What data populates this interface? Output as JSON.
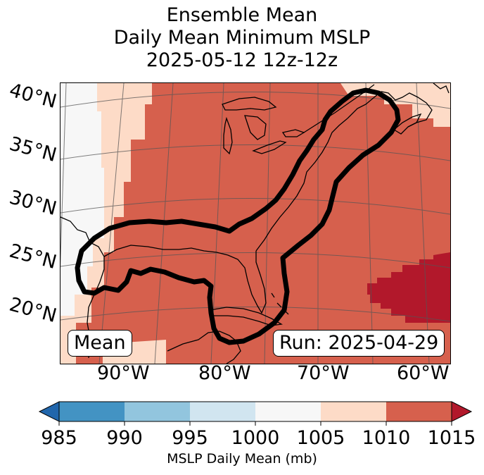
{
  "title": {
    "line1": "Ensemble Mean",
    "line2": "Daily Mean Minimum MSLP",
    "line3": "2025-05-12 12z-12z"
  },
  "map": {
    "lat_labels": [
      "40°N",
      "35°N",
      "30°N",
      "25°N",
      "20°N"
    ],
    "lon_labels": [
      "90°W",
      "80°W",
      "70°W",
      "60°W"
    ],
    "mean_badge": "Mean",
    "run_badge": "Run: 2025-04-29",
    "contour_color": "#000000"
  },
  "colorbar": {
    "ticks": [
      "985",
      "990",
      "995",
      "1000",
      "1005",
      "1010",
      "1015"
    ],
    "label": "MSLP Daily Mean (mb)",
    "colors": {
      "under": "#2166ac",
      "985-990": "#4393c3",
      "990-995": "#92c5de",
      "995-1000": "#d1e5f0",
      "1000-1005": "#f7f7f7",
      "1005-1010": "#fddbc7",
      "1010-1015": "#d6604d",
      "over": "#b2182b"
    }
  }
}
